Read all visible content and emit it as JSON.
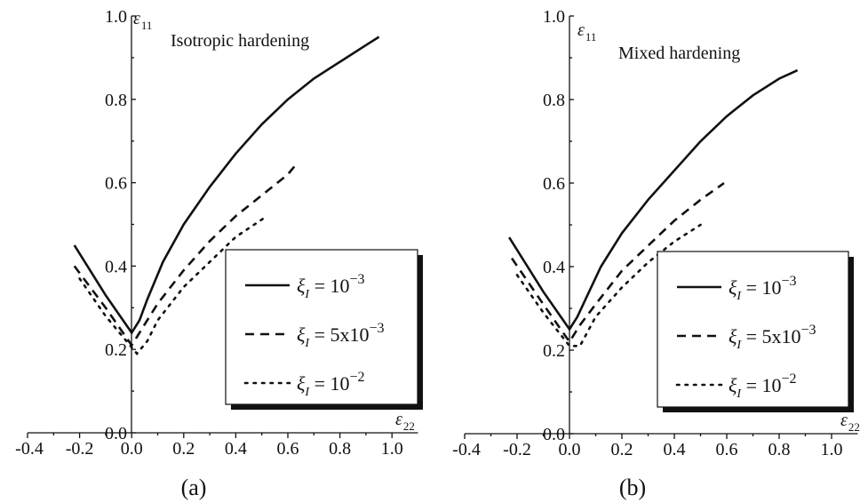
{
  "chart_data": [
    {
      "type": "line",
      "panel_label": "(a)",
      "title": "Isotropic hardening",
      "xlabel_symbol": "ε",
      "xlabel_sub": "22",
      "ylabel_symbol": "ε",
      "ylabel_sub": "11",
      "xlim": [
        -0.4,
        1.1
      ],
      "ylim": [
        0.0,
        1.0
      ],
      "xticks": [
        "-0.4",
        "-0.2",
        "0.0",
        "0.2",
        "0.4",
        "0.6",
        "0.8",
        "1.0"
      ],
      "xtick_values": [
        -0.4,
        -0.2,
        0.0,
        0.2,
        0.4,
        0.6,
        0.8,
        1.0
      ],
      "yticks": [
        "0.0",
        "0.2",
        "0.4",
        "0.6",
        "0.8",
        "1.0"
      ],
      "ytick_values": [
        0.0,
        0.2,
        0.4,
        0.6,
        0.8,
        1.0
      ],
      "grid": false,
      "legend_position": "bottom-right",
      "series": [
        {
          "name": "ξ_I = 10^-3",
          "legend_base": "10",
          "legend_exp": "−3",
          "style": "solid",
          "x": [
            -0.22,
            -0.1,
            0.0,
            0.03,
            0.06,
            0.12,
            0.2,
            0.3,
            0.4,
            0.5,
            0.6,
            0.7,
            0.8,
            0.9,
            0.95
          ],
          "y": [
            0.45,
            0.33,
            0.24,
            0.27,
            0.32,
            0.41,
            0.5,
            0.59,
            0.67,
            0.74,
            0.8,
            0.85,
            0.89,
            0.93,
            0.95
          ]
        },
        {
          "name": "ξ_I = 5x10^-3",
          "legend_base": "5x10",
          "legend_exp": "−3",
          "style": "dashed",
          "x": [
            -0.22,
            -0.1,
            0.0,
            0.04,
            0.1,
            0.2,
            0.3,
            0.4,
            0.5,
            0.6,
            0.64
          ],
          "y": [
            0.4,
            0.3,
            0.21,
            0.25,
            0.31,
            0.39,
            0.46,
            0.52,
            0.57,
            0.62,
            0.65
          ]
        },
        {
          "name": "ξ_I = 10^-2",
          "legend_base": "10",
          "legend_exp": "−2",
          "style": "dotted",
          "x": [
            -0.2,
            -0.1,
            0.02,
            0.06,
            0.1,
            0.2,
            0.3,
            0.4,
            0.52
          ],
          "y": [
            0.37,
            0.28,
            0.19,
            0.22,
            0.27,
            0.35,
            0.41,
            0.47,
            0.52
          ]
        }
      ]
    },
    {
      "type": "line",
      "panel_label": "(b)",
      "title": "Mixed hardening",
      "xlabel_symbol": "ε",
      "xlabel_sub": "22",
      "ylabel_symbol": "ε",
      "ylabel_sub": "11",
      "xlim": [
        -0.4,
        1.1
      ],
      "ylim": [
        0.0,
        1.0
      ],
      "xticks": [
        "-0.4",
        "-0.2",
        "0.0",
        "0.2",
        "0.4",
        "0.6",
        "0.8",
        "1.0"
      ],
      "xtick_values": [
        -0.4,
        -0.2,
        0.0,
        0.2,
        0.4,
        0.6,
        0.8,
        1.0
      ],
      "yticks": [
        "0.0",
        "0.2",
        "0.4",
        "0.6",
        "0.8",
        "1.0"
      ],
      "ytick_values": [
        0.0,
        0.2,
        0.4,
        0.6,
        0.8,
        1.0
      ],
      "grid": false,
      "legend_position": "bottom-right",
      "series": [
        {
          "name": "ξ_I = 10^-3",
          "legend_base": "10",
          "legend_exp": "−3",
          "style": "solid",
          "x": [
            -0.23,
            -0.1,
            0.0,
            0.03,
            0.06,
            0.12,
            0.2,
            0.3,
            0.4,
            0.5,
            0.6,
            0.7,
            0.8,
            0.87
          ],
          "y": [
            0.47,
            0.34,
            0.25,
            0.28,
            0.32,
            0.4,
            0.48,
            0.56,
            0.63,
            0.7,
            0.76,
            0.81,
            0.85,
            0.87
          ]
        },
        {
          "name": "ξ_I = 5x10^-3",
          "legend_base": "5x10",
          "legend_exp": "−3",
          "style": "dashed",
          "x": [
            -0.22,
            -0.1,
            0.0,
            0.04,
            0.1,
            0.2,
            0.3,
            0.4,
            0.5,
            0.59
          ],
          "y": [
            0.42,
            0.31,
            0.22,
            0.26,
            0.31,
            0.39,
            0.45,
            0.51,
            0.56,
            0.6
          ]
        },
        {
          "name": "ξ_I = 10^-2",
          "legend_base": "10",
          "legend_exp": "−2",
          "style": "dotted",
          "x": [
            -0.2,
            -0.1,
            0.0,
            0.04,
            0.1,
            0.2,
            0.3,
            0.4,
            0.5
          ],
          "y": [
            0.38,
            0.29,
            0.21,
            0.21,
            0.28,
            0.35,
            0.41,
            0.46,
            0.5
          ]
        }
      ]
    }
  ]
}
